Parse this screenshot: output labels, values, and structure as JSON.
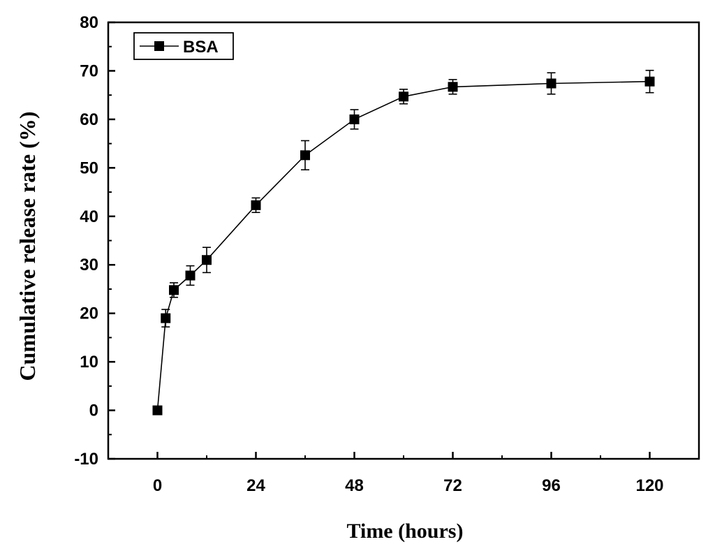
{
  "chart_data": {
    "type": "line",
    "title": "",
    "xlabel": "Time (hours)",
    "ylabel": "Cumulative release rate (%)",
    "xlim": [
      -12,
      132
    ],
    "ylim": [
      -10,
      80
    ],
    "xticks": [
      0,
      24,
      48,
      72,
      96,
      120
    ],
    "yticks": [
      -10,
      0,
      10,
      20,
      30,
      40,
      50,
      60,
      70,
      80
    ],
    "grid": false,
    "legend_position": "top-left",
    "series": [
      {
        "name": "BSA",
        "color": "#000000",
        "marker": "square",
        "x": [
          0,
          2,
          4,
          8,
          12,
          24,
          36,
          48,
          60,
          72,
          96,
          120
        ],
        "y": [
          0,
          19,
          24.8,
          27.8,
          31,
          42.3,
          52.6,
          60,
          64.7,
          66.7,
          67.4,
          67.8
        ],
        "error": [
          0,
          1.8,
          1.5,
          2.0,
          2.6,
          1.5,
          3.0,
          2.0,
          1.5,
          1.5,
          2.2,
          2.3
        ]
      }
    ]
  }
}
